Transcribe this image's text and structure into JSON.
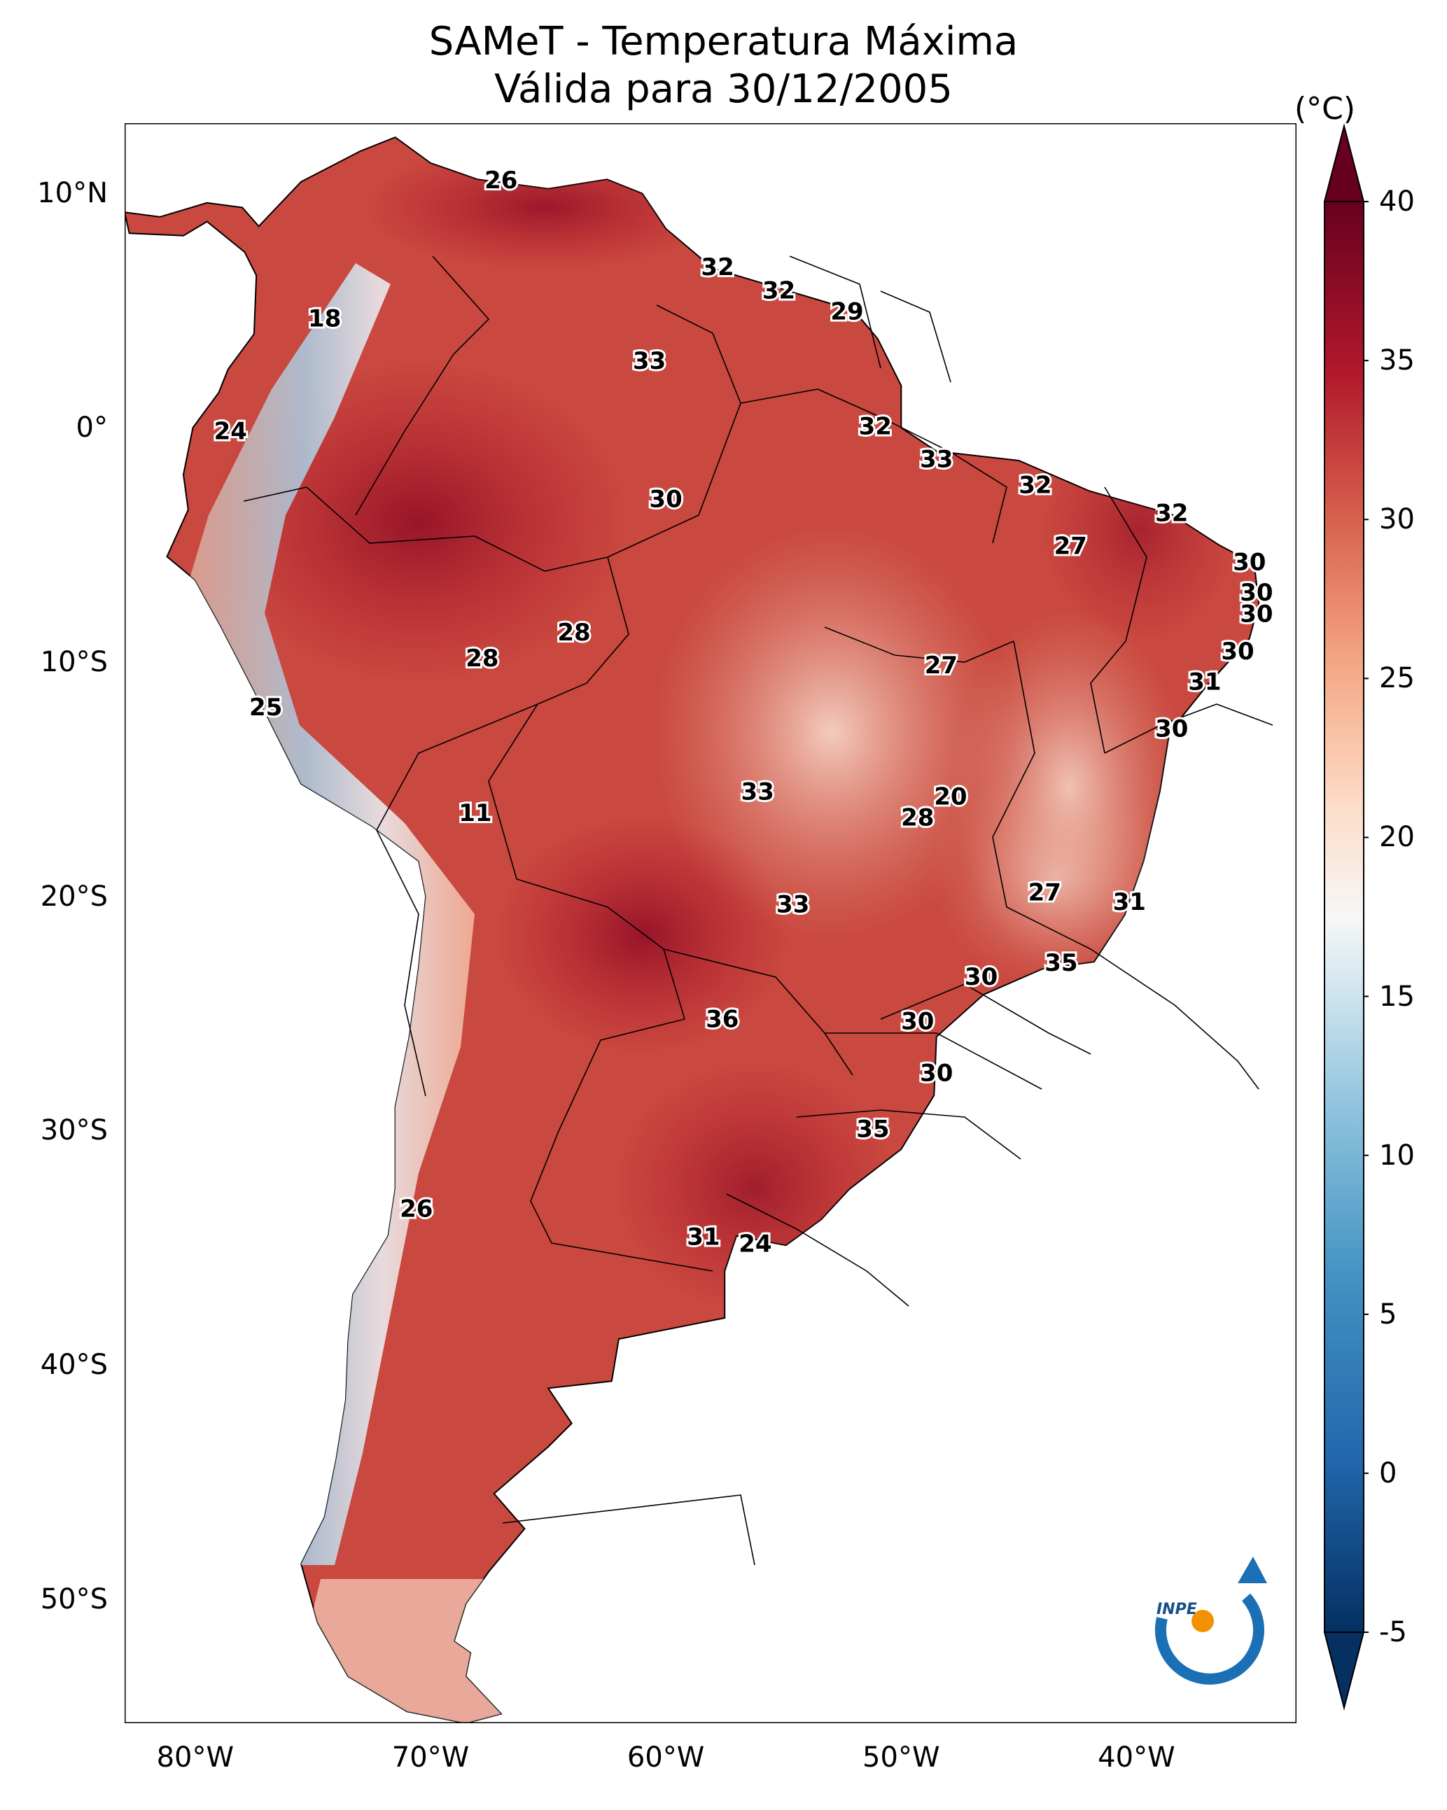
{
  "title": {
    "line1": "SAMeT - Temperatura Máxima",
    "line2": "Válida para 30/12/2005"
  },
  "axes": {
    "lat_ticks": [
      "10°N",
      "0°",
      "10°S",
      "20°S",
      "30°S",
      "40°S",
      "50°S"
    ],
    "lon_ticks": [
      "80°W",
      "70°W",
      "60°W",
      "50°W",
      "40°W"
    ]
  },
  "colorbar": {
    "unit": "(°C)",
    "ticks": [
      "40",
      "35",
      "30",
      "25",
      "20",
      "15",
      "10",
      "5",
      "0",
      "-5"
    ],
    "min": -5,
    "max": 40,
    "palette": [
      "#053061",
      "#2166ac",
      "#4393c3",
      "#92c5de",
      "#d1e5f0",
      "#f7f7f7",
      "#fddbc7",
      "#f4a582",
      "#d6604d",
      "#b2182b",
      "#67001f"
    ]
  },
  "station_values": [
    {
      "lon": -67.0,
      "lat": 10.5,
      "value": "26"
    },
    {
      "lon": -74.5,
      "lat": 4.6,
      "value": "18"
    },
    {
      "lon": -57.8,
      "lat": 6.8,
      "value": "32"
    },
    {
      "lon": -55.2,
      "lat": 5.8,
      "value": "32"
    },
    {
      "lon": -52.3,
      "lat": 4.9,
      "value": "29"
    },
    {
      "lon": -60.7,
      "lat": 2.8,
      "value": "33"
    },
    {
      "lon": -78.5,
      "lat": -0.2,
      "value": "24"
    },
    {
      "lon": -51.1,
      "lat": 0.0,
      "value": "32"
    },
    {
      "lon": -48.5,
      "lat": -1.4,
      "value": "33"
    },
    {
      "lon": -60.0,
      "lat": -3.1,
      "value": "30"
    },
    {
      "lon": -44.3,
      "lat": -2.5,
      "value": "32"
    },
    {
      "lon": -38.5,
      "lat": -3.7,
      "value": "32"
    },
    {
      "lon": -42.8,
      "lat": -5.1,
      "value": "27"
    },
    {
      "lon": -35.2,
      "lat": -5.8,
      "value": "30"
    },
    {
      "lon": -34.9,
      "lat": -7.1,
      "value": "30"
    },
    {
      "lon": -34.9,
      "lat": -8.0,
      "value": "30"
    },
    {
      "lon": -63.9,
      "lat": -8.8,
      "value": "28"
    },
    {
      "lon": -67.8,
      "lat": -9.9,
      "value": "28"
    },
    {
      "lon": -48.3,
      "lat": -10.2,
      "value": "27"
    },
    {
      "lon": -35.7,
      "lat": -9.6,
      "value": "30"
    },
    {
      "lon": -37.1,
      "lat": -10.9,
      "value": "31"
    },
    {
      "lon": -77.0,
      "lat": -12.0,
      "value": "25"
    },
    {
      "lon": -38.5,
      "lat": -12.9,
      "value": "30"
    },
    {
      "lon": -56.1,
      "lat": -15.6,
      "value": "33"
    },
    {
      "lon": -47.9,
      "lat": -15.8,
      "value": "20"
    },
    {
      "lon": -49.3,
      "lat": -16.7,
      "value": "28"
    },
    {
      "lon": -68.1,
      "lat": -16.5,
      "value": "11"
    },
    {
      "lon": -43.9,
      "lat": -19.9,
      "value": "27"
    },
    {
      "lon": -40.3,
      "lat": -20.3,
      "value": "31"
    },
    {
      "lon": -54.6,
      "lat": -20.4,
      "value": "33"
    },
    {
      "lon": -43.2,
      "lat": -22.9,
      "value": "35"
    },
    {
      "lon": -46.6,
      "lat": -23.5,
      "value": "30"
    },
    {
      "lon": -57.6,
      "lat": -25.3,
      "value": "36"
    },
    {
      "lon": -49.3,
      "lat": -25.4,
      "value": "30"
    },
    {
      "lon": -48.5,
      "lat": -27.6,
      "value": "30"
    },
    {
      "lon": -51.2,
      "lat": -30.0,
      "value": "35"
    },
    {
      "lon": -70.6,
      "lat": -33.4,
      "value": "26"
    },
    {
      "lon": -58.4,
      "lat": -34.6,
      "value": "31"
    },
    {
      "lon": -56.2,
      "lat": -34.9,
      "value": "24"
    }
  ],
  "logo": {
    "text": "INPE"
  }
}
